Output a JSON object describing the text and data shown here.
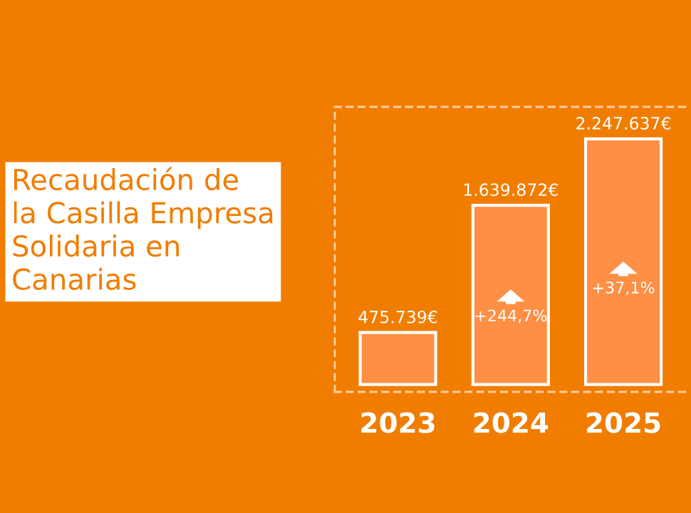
{
  "chart_data": {
    "type": "bar",
    "title": "Recaudación de\nla Casilla Empresa\nSolidaria en\nCanarias",
    "categories": [
      "2023",
      "2024",
      "2025"
    ],
    "values": [
      475739,
      1639872,
      2247637
    ],
    "value_labels": [
      "475.739€",
      "1.639.872€",
      "2.247.637€"
    ],
    "color": "#ff8f45",
    "annotations": [
      "+244,7%",
      "+37,1%"
    ],
    "grid": false,
    "legend": false
  }
}
